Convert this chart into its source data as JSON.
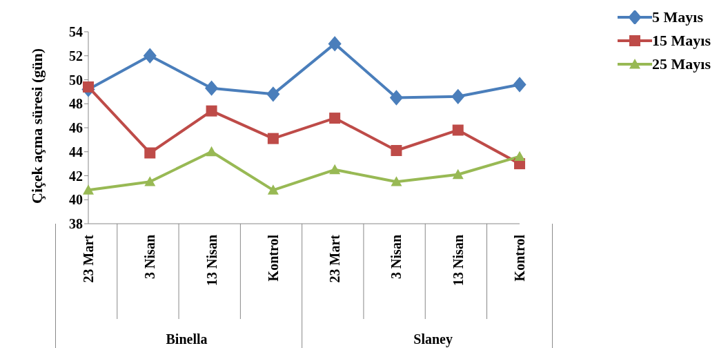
{
  "chart_data": {
    "type": "line",
    "ylabel": "Çiçek açma süresi (gün)",
    "categories": [
      "23 Mart",
      "3 Nisan",
      "13 Nisan",
      "Kontrol",
      "23 Mart",
      "3 Nisan",
      "13 Nisan",
      "Kontrol"
    ],
    "annotations": [
      "Binella",
      "Slaney"
    ],
    "series": [
      {
        "name": "5 Mayıs",
        "color": "#4a7ebb",
        "marker": "diamond",
        "values": [
          49.2,
          52.0,
          49.3,
          48.8,
          53.0,
          48.5,
          48.6,
          49.6
        ]
      },
      {
        "name": "15 Mayıs",
        "color": "#be4b48",
        "marker": "square",
        "values": [
          49.4,
          43.9,
          47.4,
          45.1,
          46.8,
          44.1,
          45.8,
          43.0
        ]
      },
      {
        "name": "25 Mayıs",
        "color": "#98b954",
        "marker": "triangle",
        "values": [
          40.8,
          41.5,
          44.0,
          40.8,
          42.5,
          41.5,
          42.1,
          43.6
        ]
      }
    ],
    "ylim": [
      38,
      54
    ],
    "yticks": [
      38,
      40,
      42,
      44,
      46,
      48,
      50,
      52,
      54
    ],
    "grid": false,
    "legend": "top right",
    "line_style": "solid"
  }
}
